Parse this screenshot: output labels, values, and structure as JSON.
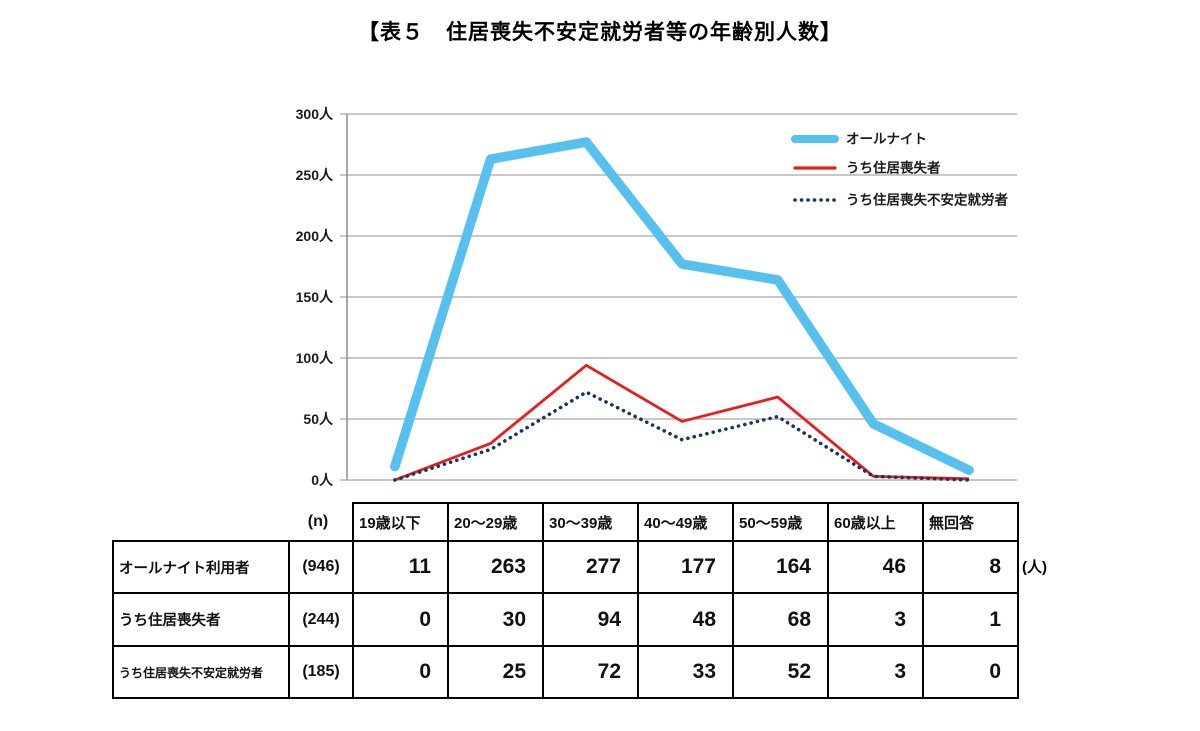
{
  "title": "【表５　住居喪失不安定就労者等の年齢別人数】",
  "chart_data": {
    "type": "line",
    "title": "【表５　住居喪失不安定就労者等の年齢別人数】",
    "categories": [
      "19歳以下",
      "20～29歳",
      "30～39歳",
      "40～49歳",
      "50～59歳",
      "60歳以上",
      "無回答"
    ],
    "series": [
      {
        "name": "オールナイト",
        "values": [
          11,
          263,
          277,
          177,
          164,
          46,
          8
        ],
        "color": "#56c1ee",
        "style": "solid-thick"
      },
      {
        "name": "うち住居喪失者",
        "values": [
          0,
          30,
          94,
          48,
          68,
          3,
          1
        ],
        "color": "#ea1c1c",
        "style": "solid"
      },
      {
        "name": "うち住居喪失不安定就労者",
        "values": [
          0,
          25,
          72,
          33,
          52,
          3,
          0
        ],
        "color": "#17375e",
        "style": "dotted"
      }
    ],
    "xlabel": "",
    "ylabel": "",
    "ylim": [
      0,
      300
    ],
    "ytick_interval": 50,
    "ytick_suffix": "人",
    "grid": true,
    "legend_position": "top-right"
  },
  "table": {
    "n_header": "(n)",
    "col_headers": [
      "19歳以下",
      "20～29歳",
      "30～39歳",
      "40～49歳",
      "50～59歳",
      "60歳以上",
      "無回答"
    ],
    "rows": [
      {
        "label": "オールナイト利用者",
        "n": "(946)",
        "values": [
          "11",
          "263",
          "277",
          "177",
          "164",
          "46",
          "8"
        ]
      },
      {
        "label": "うち住居喪失者",
        "n": "(244)",
        "values": [
          "0",
          "30",
          "94",
          "48",
          "68",
          "3",
          "1"
        ]
      },
      {
        "label": "うち住居喪失不安定就労者",
        "n": "(185)",
        "values": [
          "0",
          "25",
          "72",
          "33",
          "52",
          "3",
          "0"
        ]
      }
    ],
    "unit_note": "(人)"
  },
  "colors": {
    "gridline": "#a6a6a6",
    "axis": "#8c8c8c",
    "text": "#1a1a1a",
    "table_border": "#000000"
  }
}
